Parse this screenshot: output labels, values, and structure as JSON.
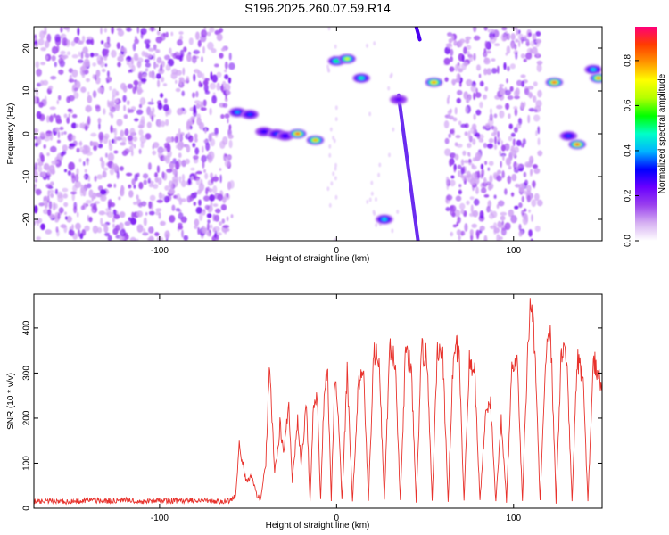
{
  "title": "S196.2025.260.07.59.R14",
  "colors": {
    "snr_line": "#e8322c",
    "frame": "#000000",
    "colormap": [
      "#ffffff",
      "#d6b0f2",
      "#9a40ee",
      "#6a00ff",
      "#0000ff",
      "#00b4ff",
      "#00ffc8",
      "#00ff00",
      "#b4ff00",
      "#ffff00",
      "#ff9600",
      "#ff3c00",
      "#ff0078"
    ]
  },
  "chart_data": [
    {
      "type": "heatmap",
      "xlabel": "Height of straight line (km)",
      "ylabel": "Frequency (Hz)",
      "xlim": [
        -171,
        150
      ],
      "ylim": [
        -25,
        25
      ],
      "xticks": [
        -100,
        0,
        100
      ],
      "yticks": [
        -20,
        -10,
        0,
        10,
        20
      ],
      "colorbar": {
        "label": "Normalized spectral amplitude",
        "range": [
          0.0,
          0.95
        ],
        "ticks": [
          0.0,
          0.2,
          0.4,
          0.6,
          0.8
        ]
      },
      "noise_regions_x": [
        [
          -171,
          -59
        ],
        [
          62,
          115
        ]
      ],
      "features": [
        {
          "x": -56,
          "y": 5,
          "amp": 0.4
        },
        {
          "x": -49,
          "y": 4.5,
          "amp": 0.35
        },
        {
          "x": -41,
          "y": 0.5,
          "amp": 0.3
        },
        {
          "x": -34,
          "y": 0,
          "amp": 0.35
        },
        {
          "x": -29,
          "y": -0.5,
          "amp": 0.3
        },
        {
          "x": -22,
          "y": 0,
          "amp": 0.9
        },
        {
          "x": -12,
          "y": -1.5,
          "amp": 0.8
        },
        {
          "x": 0,
          "y": 17,
          "amp": 0.55
        },
        {
          "x": 6,
          "y": 17.5,
          "amp": 0.7
        },
        {
          "x": 14,
          "y": 13,
          "amp": 0.5
        },
        {
          "x": 27,
          "y": -20,
          "amp": 0.45
        },
        {
          "x": 35,
          "y": 8,
          "amp": 0.25
        },
        {
          "x": 55,
          "y": 12,
          "amp": 0.85
        },
        {
          "x": 123,
          "y": 12,
          "amp": 0.9
        },
        {
          "x": 131,
          "y": -0.5,
          "amp": 0.35
        },
        {
          "x": 136,
          "y": -2.5,
          "amp": 0.9
        },
        {
          "x": 145,
          "y": 15,
          "amp": 0.45
        },
        {
          "x": 148,
          "y": 13,
          "amp": 0.85
        }
      ],
      "diagonal_streak": {
        "from": [
          35,
          9
        ],
        "to": [
          46,
          -25
        ]
      },
      "top_streak": {
        "from": [
          45,
          25
        ],
        "to": [
          47,
          22
        ]
      }
    },
    {
      "type": "line",
      "xlabel": "Height of straight line (km)",
      "ylabel": "SNR (10 * v/v)",
      "xlim": [
        -171,
        150
      ],
      "ylim": [
        0,
        475
      ],
      "xticks": [
        -100,
        0,
        100
      ],
      "yticks": [
        0,
        100,
        200,
        300,
        400
      ],
      "series": [
        {
          "name": "",
          "x": [
            -171,
            -160,
            -150,
            -140,
            -130,
            -120,
            -110,
            -100,
            -90,
            -80,
            -70,
            -60,
            -57,
            -55,
            -51,
            -48,
            -45,
            -43,
            -40,
            -38,
            -35,
            -33,
            -32,
            -30,
            -27,
            -25,
            -22,
            -20,
            -17,
            -15,
            -13,
            -11,
            -9,
            -7,
            -5,
            -3,
            -1,
            1,
            3,
            6,
            9,
            12,
            15,
            18,
            21,
            24,
            27,
            30,
            33,
            36,
            39,
            42,
            45,
            48,
            51,
            54,
            57,
            60,
            63,
            66,
            69,
            72,
            75,
            78,
            81,
            84,
            87,
            90,
            93,
            96,
            99,
            102,
            105,
            108,
            110,
            112,
            115,
            118,
            121,
            124,
            127,
            130,
            133,
            136,
            139,
            142,
            145,
            148,
            150
          ],
          "y": [
            15,
            17,
            14,
            18,
            16,
            19,
            15,
            17,
            16,
            18,
            15,
            17,
            30,
            140,
            60,
            70,
            30,
            20,
            100,
            320,
            80,
            130,
            190,
            120,
            230,
            60,
            200,
            100,
            230,
            15,
            230,
            250,
            15,
            260,
            290,
            15,
            300,
            210,
            15,
            300,
            15,
            260,
            330,
            15,
            340,
            330,
            15,
            350,
            330,
            15,
            350,
            320,
            15,
            350,
            340,
            15,
            360,
            330,
            15,
            340,
            360,
            15,
            340,
            300,
            15,
            200,
            230,
            15,
            200,
            15,
            300,
            330,
            15,
            360,
            470,
            340,
            15,
            330,
            380,
            15,
            350,
            330,
            15,
            330,
            300,
            15,
            330,
            300,
            260
          ]
        }
      ]
    }
  ]
}
